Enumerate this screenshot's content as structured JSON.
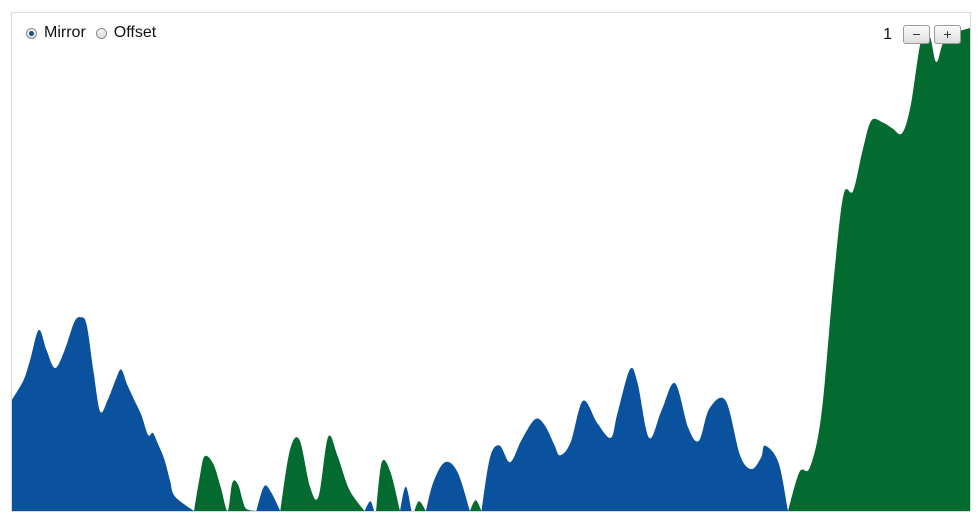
{
  "controls": {
    "mode_options": [
      {
        "label": "Mirror",
        "selected": true
      },
      {
        "label": "Offset",
        "selected": false
      }
    ],
    "zoom_value": "1",
    "zoom_out_label": "−",
    "zoom_in_label": "+"
  },
  "colors": {
    "positive": "#036b2f",
    "negative": "#0a529e",
    "border": "#d9d9d9"
  },
  "chart_data": {
    "type": "area",
    "subtype": "horizon-mirror",
    "title": "",
    "xlabel": "",
    "ylabel": "",
    "ylim": [
      0,
      1
    ],
    "grid": false,
    "legend": "none",
    "series": [
      {
        "sign": "negative",
        "color": "#0a529e",
        "points": [
          [
            0,
            0.228
          ],
          [
            0.012,
            0.268
          ],
          [
            0.019,
            0.31
          ],
          [
            0.028,
            0.371
          ],
          [
            0.036,
            0.33
          ],
          [
            0.045,
            0.293
          ],
          [
            0.055,
            0.33
          ],
          [
            0.065,
            0.387
          ],
          [
            0.072,
            0.397
          ],
          [
            0.078,
            0.381
          ],
          [
            0.085,
            0.287
          ],
          [
            0.092,
            0.204
          ],
          [
            0.1,
            0.228
          ],
          [
            0.108,
            0.268
          ],
          [
            0.114,
            0.29
          ],
          [
            0.12,
            0.26
          ],
          [
            0.128,
            0.226
          ],
          [
            0.135,
            0.197
          ],
          [
            0.142,
            0.156
          ],
          [
            0.147,
            0.16
          ],
          [
            0.152,
            0.139
          ],
          [
            0.159,
            0.106
          ],
          [
            0.165,
            0.062
          ],
          [
            0.17,
            0.03
          ],
          [
            0.19,
            0
          ]
        ]
      },
      {
        "sign": "positive",
        "color": "#036b2f",
        "points": [
          [
            0.19,
            0
          ],
          [
            0.196,
            0.07
          ],
          [
            0.201,
            0.112
          ],
          [
            0.21,
            0.097
          ],
          [
            0.218,
            0.048
          ],
          [
            0.225,
            0
          ],
          [
            0.23,
            0.058
          ],
          [
            0.236,
            0.054
          ],
          [
            0.244,
            0.005
          ],
          [
            0.255,
            0
          ]
        ]
      },
      {
        "sign": "negative",
        "color": "#0a529e",
        "points": [
          [
            0.255,
            0
          ],
          [
            0.263,
            0.05
          ],
          [
            0.27,
            0.04
          ],
          [
            0.28,
            0
          ]
        ]
      },
      {
        "sign": "positive",
        "color": "#036b2f",
        "points": [
          [
            0.28,
            0
          ],
          [
            0.29,
            0.124
          ],
          [
            0.3,
            0.146
          ],
          [
            0.311,
            0.05
          ],
          [
            0.32,
            0.03
          ],
          [
            0.33,
            0.152
          ],
          [
            0.34,
            0.112
          ],
          [
            0.352,
            0.044
          ],
          [
            0.368,
            0
          ]
        ]
      },
      {
        "sign": "negative",
        "color": "#0a529e",
        "points": [
          [
            0.368,
            0
          ],
          [
            0.374,
            0.02
          ],
          [
            0.378,
            0
          ]
        ]
      },
      {
        "sign": "positive",
        "color": "#036b2f",
        "points": [
          [
            0.38,
            0
          ],
          [
            0.386,
            0.1
          ],
          [
            0.395,
            0.08
          ],
          [
            0.405,
            0
          ]
        ]
      },
      {
        "sign": "negative",
        "color": "#0a529e",
        "points": [
          [
            0.405,
            0
          ],
          [
            0.411,
            0.05
          ],
          [
            0.417,
            0
          ]
        ]
      },
      {
        "sign": "positive",
        "color": "#036b2f",
        "points": [
          [
            0.42,
            0
          ],
          [
            0.425,
            0.02
          ],
          [
            0.432,
            0
          ]
        ]
      },
      {
        "sign": "negative",
        "color": "#0a529e",
        "points": [
          [
            0.432,
            0
          ],
          [
            0.44,
            0.06
          ],
          [
            0.452,
            0.1
          ],
          [
            0.465,
            0.08
          ],
          [
            0.478,
            0
          ]
        ]
      },
      {
        "sign": "positive",
        "color": "#036b2f",
        "points": [
          [
            0.478,
            0
          ],
          [
            0.484,
            0.022
          ],
          [
            0.49,
            0
          ]
        ]
      },
      {
        "sign": "negative",
        "color": "#0a529e",
        "points": [
          [
            0.49,
            0
          ],
          [
            0.499,
            0.11
          ],
          [
            0.509,
            0.134
          ],
          [
            0.52,
            0.1
          ],
          [
            0.532,
            0.146
          ],
          [
            0.546,
            0.188
          ],
          [
            0.556,
            0.176
          ],
          [
            0.566,
            0.136
          ],
          [
            0.572,
            0.114
          ],
          [
            0.583,
            0.14
          ],
          [
            0.596,
            0.226
          ],
          [
            0.611,
            0.18
          ],
          [
            0.625,
            0.15
          ],
          [
            0.632,
            0.2
          ],
          [
            0.645,
            0.29
          ],
          [
            0.653,
            0.262
          ],
          [
            0.665,
            0.15
          ],
          [
            0.678,
            0.206
          ],
          [
            0.692,
            0.262
          ],
          [
            0.706,
            0.17
          ],
          [
            0.717,
            0.144
          ],
          [
            0.728,
            0.21
          ],
          [
            0.745,
            0.226
          ],
          [
            0.76,
            0.114
          ],
          [
            0.772,
            0.086
          ],
          [
            0.782,
            0.11
          ],
          [
            0.786,
            0.134
          ],
          [
            0.8,
            0.1
          ],
          [
            0.81,
            0
          ]
        ]
      },
      {
        "sign": "positive",
        "color": "#036b2f",
        "points": [
          [
            0.81,
            0
          ],
          [
            0.822,
            0.08
          ],
          [
            0.833,
            0.09
          ],
          [
            0.845,
            0.2
          ],
          [
            0.858,
            0.48
          ],
          [
            0.868,
            0.648
          ],
          [
            0.878,
            0.656
          ],
          [
            0.888,
            0.74
          ],
          [
            0.897,
            0.8
          ],
          [
            0.909,
            0.796
          ],
          [
            0.919,
            0.784
          ],
          [
            0.929,
            0.774
          ],
          [
            0.938,
            0.83
          ],
          [
            0.949,
            0.965
          ],
          [
            0.958,
            0.972
          ],
          [
            0.965,
            0.92
          ],
          [
            0.975,
            0.97
          ],
          [
            1.0,
            0.99
          ]
        ]
      }
    ]
  }
}
